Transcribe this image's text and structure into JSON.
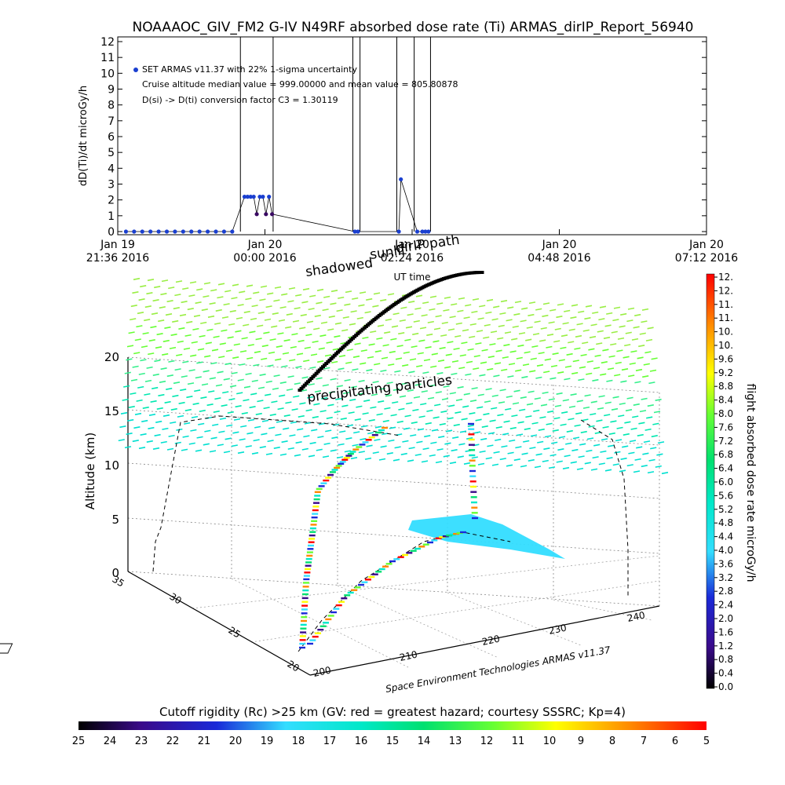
{
  "header": {
    "title": "NOAAAOC_GIV_FM2 G-IV    N49RF   absorbed dose rate (Ti) ARMAS_dirIP_Report_56940"
  },
  "top_panel": {
    "ylabel": "dD(Ti)/dt microGy/h",
    "xlabel": "UT time",
    "annotations": [
      "SET ARMAS v11.37 with 22% 1-sigma uncertainty",
      "Cruise altitude median value = 999.00000 and mean value = 805.80878",
      "D(si) -> D(ti) conversion factor C3 = 1.30119"
    ]
  },
  "chart_data": [
    {
      "type": "line",
      "panel": "dose-rate-time-series",
      "title": "NOAAAOC_GIV_FM2 G-IV    N49RF   absorbed dose rate (Ti) ARMAS_dirIP_Report_56940",
      "xlabel": "UT time",
      "ylabel": "dD(Ti)/dt microGy/h",
      "ylim": [
        0,
        12
      ],
      "y_ticks": [
        "0",
        "1",
        "2",
        "3",
        "4",
        "5",
        "6",
        "7",
        "8",
        "9",
        "10",
        "11",
        "12"
      ],
      "x_tick_labels": [
        [
          "Jan 19",
          "21:36 2016"
        ],
        [
          "Jan 20",
          "00:00 2016"
        ],
        [
          "Jan 20",
          "02:24 2016"
        ],
        [
          "Jan 20",
          "04:48 2016"
        ],
        [
          "Jan 20",
          "07:12 2016"
        ]
      ],
      "x_minutes_range": [
        0,
        576
      ],
      "series": [
        {
          "name": "SET ARMAS v11.37 with 22% 1-sigma uncertainty",
          "color": "#1a3fd0",
          "points_minutes_value": [
            [
              8,
              0
            ],
            [
              16,
              0
            ],
            [
              24,
              0
            ],
            [
              32,
              0
            ],
            [
              40,
              0
            ],
            [
              48,
              0
            ],
            [
              56,
              0
            ],
            [
              64,
              0
            ],
            [
              72,
              0
            ],
            [
              80,
              0
            ],
            [
              88,
              0
            ],
            [
              96,
              0
            ],
            [
              104,
              0
            ],
            [
              112,
              0
            ],
            [
              124,
              2.2
            ],
            [
              127,
              2.2
            ],
            [
              130,
              2.2
            ],
            [
              133,
              2.2
            ],
            [
              136,
              1.1
            ],
            [
              139,
              2.2
            ],
            [
              142,
              2.2
            ],
            [
              145,
              1.1
            ],
            [
              148,
              2.2
            ],
            [
              151,
              1.1
            ],
            [
              232,
              0
            ],
            [
              235,
              0
            ],
            [
              275,
              0
            ],
            [
              277,
              3.3
            ],
            [
              293,
              0
            ],
            [
              298,
              0
            ],
            [
              301,
              0
            ],
            [
              304,
              0
            ]
          ],
          "vertical_spike_minutes": [
            120,
            152,
            230,
            237,
            273,
            290,
            306
          ]
        }
      ]
    },
    {
      "type": "scatter",
      "panel": "3d-flight-track",
      "title": "",
      "zlabel": "Altitude (km)",
      "z_ticks": [
        "0",
        "5",
        "10",
        "15",
        "20"
      ],
      "zlim": [
        0,
        20
      ],
      "lat_ticks": [
        "20",
        "25",
        "30",
        "35"
      ],
      "lon_ticks": [
        "200",
        "210",
        "220",
        "230",
        "240"
      ],
      "credit": "Space Environment Technologies ARMAS v11.37",
      "overlay_labels": [
        "shadowed",
        "sunlit",
        "dirIP path",
        "precipitating particles"
      ],
      "plane_altitude_km": 21
    }
  ],
  "colorbar_right": {
    "label": "flight absorbed dose rate microGy/h",
    "ticks": [
      "0.0",
      "0.4",
      "0.8",
      "1.2",
      "1.6",
      "2.0",
      "2.4",
      "2.8",
      "3.2",
      "3.6",
      "4.0",
      "4.4",
      "4.8",
      "5.2",
      "5.6",
      "6.0",
      "6.4",
      "6.8",
      "7.2",
      "7.6",
      "8.0",
      "8.4",
      "8.8",
      "9.2",
      "9.6",
      "10.",
      "10.",
      "11.",
      "11.",
      "12.",
      "12."
    ]
  },
  "colorbar_bottom": {
    "label": "Cutoff rigidity (Rc) >25 km (GV: red = greatest hazard; courtesy SSSRC; Kp=4)",
    "ticks": [
      "25",
      "24",
      "23",
      "22",
      "21",
      "20",
      "19",
      "18",
      "17",
      "16",
      "15",
      "14",
      "13",
      "12",
      "11",
      "10",
      "9",
      "8",
      "7",
      "6",
      "5"
    ]
  },
  "colors": {
    "track_blue": "#1a3fd0",
    "track_dark": "#3a0a63",
    "field_green": "#66ff33",
    "field_cyan": "#00e8c8",
    "ground_cyan": "#33ddff"
  }
}
